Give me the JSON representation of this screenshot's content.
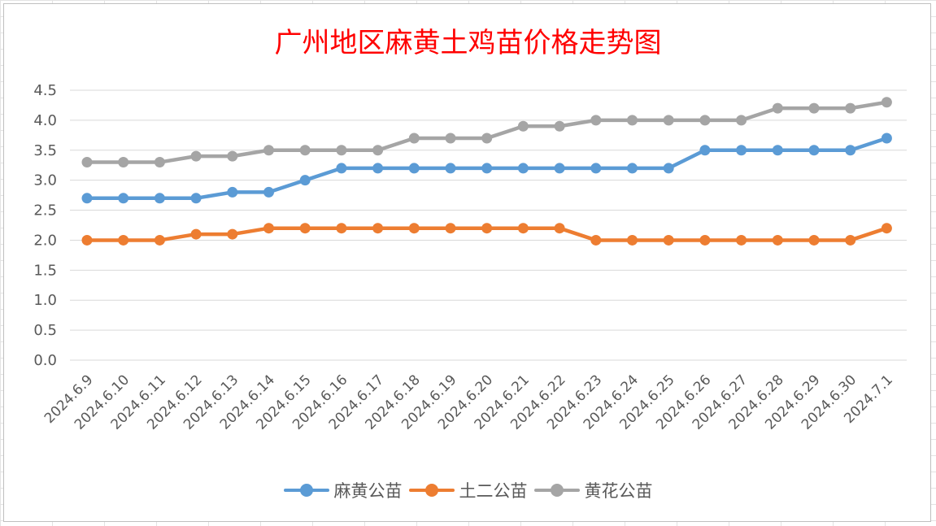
{
  "chart_data": {
    "type": "line",
    "title": "广州地区麻黄土鸡苗价格走势图",
    "categories": [
      "2024.6.9",
      "2024.6.10",
      "2024.6.11",
      "2024.6.12",
      "2024.6.13",
      "2024.6.14",
      "2024.6.15",
      "2024.6.16",
      "2024.6.17",
      "2024.6.18",
      "2024.6.19",
      "2024.6.20",
      "2024.6.21",
      "2024.6.22",
      "2024.6.23",
      "2024.6.24",
      "2024.6.25",
      "2024.6.26",
      "2024.6.27",
      "2024.6.28",
      "2024.6.29",
      "2024.6.30",
      "2024.7.1"
    ],
    "ylim": [
      0,
      4.5
    ],
    "yticks": [
      "0.0",
      "0.5",
      "1.0",
      "1.5",
      "2.0",
      "2.5",
      "3.0",
      "3.5",
      "4.0",
      "4.5"
    ],
    "grid": true,
    "legend_position": "bottom",
    "series": [
      {
        "name": "麻黄公苗",
        "color": "#5b9bd5",
        "values": [
          2.7,
          2.7,
          2.7,
          2.7,
          2.8,
          2.8,
          3.0,
          3.2,
          3.2,
          3.2,
          3.2,
          3.2,
          3.2,
          3.2,
          3.2,
          3.2,
          3.2,
          3.5,
          3.5,
          3.5,
          3.5,
          3.5,
          3.7
        ]
      },
      {
        "name": "土二公苗",
        "color": "#ed7d31",
        "values": [
          2.0,
          2.0,
          2.0,
          2.1,
          2.1,
          2.2,
          2.2,
          2.2,
          2.2,
          2.2,
          2.2,
          2.2,
          2.2,
          2.2,
          2.0,
          2.0,
          2.0,
          2.0,
          2.0,
          2.0,
          2.0,
          2.0,
          2.2
        ]
      },
      {
        "name": "黄花公苗",
        "color": "#a5a5a5",
        "values": [
          3.3,
          3.3,
          3.3,
          3.4,
          3.4,
          3.5,
          3.5,
          3.5,
          3.5,
          3.7,
          3.7,
          3.7,
          3.9,
          3.9,
          4.0,
          4.0,
          4.0,
          4.0,
          4.0,
          4.2,
          4.2,
          4.2,
          4.3
        ]
      }
    ]
  }
}
